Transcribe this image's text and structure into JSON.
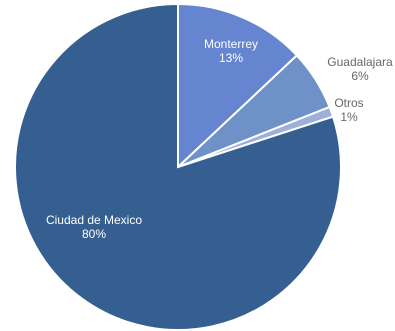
{
  "chart_data": {
    "type": "pie",
    "slices": [
      {
        "label": "Monterrey",
        "value": 13,
        "value_label": "13%",
        "color": "#6585D0",
        "label_color": "#ffffff"
      },
      {
        "label": "Guadalajara",
        "value": 6,
        "value_label": "6%",
        "color": "#6E92C8",
        "label_color": "#666666"
      },
      {
        "label": "Otros",
        "value": 1,
        "value_label": "1%",
        "color": "#9DB1D8",
        "label_color": "#666666"
      },
      {
        "label": "Ciudad de Mexico",
        "value": 80,
        "value_label": "80%",
        "color": "#365F91",
        "label_color": "#ffffff"
      }
    ],
    "start_angle_deg": 0,
    "direction": "clockwise",
    "legend": "none"
  }
}
